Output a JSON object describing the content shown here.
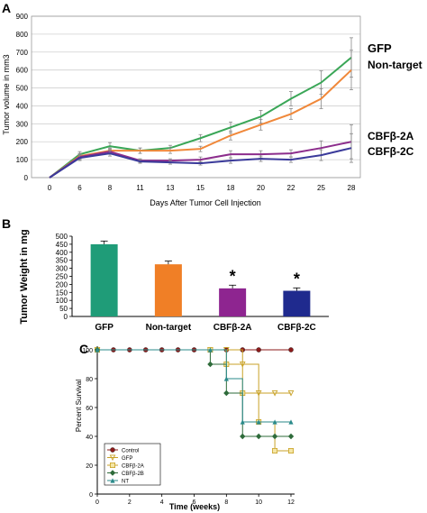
{
  "colors": {
    "gfp": "#3aa657",
    "nontarget": "#f0883a",
    "cbfb2a": "#8c2d8c",
    "cbfb2c": "#3a3a9a",
    "bar_gfp": "#1f9c78",
    "bar_nontarget": "#f07f26",
    "bar_2a": "#8e2590",
    "bar_2c": "#1f2a8e",
    "surv_control": "#8b1a1a",
    "surv_gfp": "#c9a227",
    "surv_2a": "#c9a227",
    "surv_2b": "#2e6b3a",
    "surv_nt": "#2a8a8a"
  },
  "chart_data": [
    {
      "panel": "A",
      "type": "line",
      "xlabel": "Days After Tumor Cell Injection",
      "ylabel": "Tumor volume in mm3",
      "categories": [
        "0",
        "6",
        "8",
        "11",
        "13",
        "15",
        "18",
        "20",
        "22",
        "25",
        "28"
      ],
      "ylim": [
        0,
        900
      ],
      "yticks": [
        0,
        100,
        200,
        300,
        400,
        500,
        600,
        700,
        800,
        900
      ],
      "series": [
        {
          "name": "GFP",
          "color_key": "gfp",
          "values": [
            0,
            130,
            175,
            150,
            165,
            220,
            280,
            340,
            440,
            530,
            670
          ],
          "err": [
            0,
            15,
            20,
            15,
            15,
            20,
            30,
            35,
            40,
            65,
            110
          ]
        },
        {
          "name": "Non-target",
          "color_key": "nontarget",
          "values": [
            0,
            120,
            150,
            150,
            150,
            160,
            235,
            295,
            355,
            440,
            600
          ],
          "err": [
            0,
            15,
            15,
            15,
            15,
            15,
            25,
            30,
            30,
            55,
            110
          ]
        },
        {
          "name": "CBFβ-2A",
          "color_key": "cbfb2a",
          "values": [
            0,
            115,
            145,
            95,
            95,
            100,
            130,
            130,
            135,
            165,
            200
          ],
          "err": [
            0,
            15,
            15,
            10,
            10,
            15,
            20,
            20,
            20,
            40,
            95
          ]
        },
        {
          "name": "CBFβ-2C",
          "color_key": "cbfb2c",
          "values": [
            0,
            110,
            135,
            90,
            85,
            80,
            95,
            105,
            100,
            125,
            165
          ],
          "err": [
            0,
            15,
            15,
            10,
            10,
            10,
            15,
            15,
            15,
            30,
            80
          ]
        }
      ],
      "legend_placement": "right"
    },
    {
      "panel": "B",
      "type": "bar",
      "ylabel": "Tumor Weight in mg",
      "categories": [
        "GFP",
        "Non-target",
        "CBFβ-2A",
        "CBFβ-2C"
      ],
      "values": [
        450,
        325,
        175,
        160
      ],
      "err": [
        20,
        20,
        20,
        18
      ],
      "ylim": [
        0,
        500
      ],
      "yticks": [
        0,
        50,
        100,
        150,
        200,
        250,
        300,
        350,
        400,
        450,
        500
      ],
      "annotations": [
        "",
        "",
        "*",
        "*"
      ]
    },
    {
      "panel": "C",
      "type": "line",
      "xlabel": "Time (weeks)",
      "ylabel": "Percent Survival",
      "xlim": [
        0,
        12
      ],
      "ylim": [
        0,
        100
      ],
      "xticks": [
        0,
        2,
        4,
        6,
        8,
        10,
        12
      ],
      "yticks": [
        0,
        20,
        40,
        60,
        80,
        100
      ],
      "step": true,
      "series": [
        {
          "name": "Control",
          "color_key": "surv_control",
          "marker": "circle",
          "x": [
            0,
            1,
            2,
            3,
            4,
            5,
            6,
            7,
            8,
            9,
            10,
            12
          ],
          "y": [
            100,
            100,
            100,
            100,
            100,
            100,
            100,
            100,
            100,
            100,
            100,
            100
          ]
        },
        {
          "name": "GFP",
          "color_key": "surv_gfp",
          "marker": "triangle-down",
          "x": [
            0,
            7,
            8,
            9,
            10,
            11,
            12
          ],
          "y": [
            100,
            100,
            100,
            90,
            70,
            70,
            70
          ]
        },
        {
          "name": "CBFβ-2A",
          "color_key": "surv_2a",
          "marker": "square",
          "x": [
            0,
            7,
            8,
            9,
            10,
            11,
            12
          ],
          "y": [
            100,
            100,
            90,
            70,
            50,
            30,
            30
          ]
        },
        {
          "name": "CBFβ-2B",
          "color_key": "surv_2b",
          "marker": "diamond",
          "x": [
            0,
            7,
            8,
            9,
            10,
            11,
            12
          ],
          "y": [
            100,
            90,
            70,
            40,
            40,
            40,
            40
          ]
        },
        {
          "name": "NT",
          "color_key": "surv_nt",
          "marker": "triangle-up",
          "x": [
            0,
            7,
            8,
            9,
            10,
            11,
            12
          ],
          "y": [
            100,
            100,
            80,
            50,
            50,
            50,
            50
          ]
        }
      ],
      "legend_placement": "bottom-left"
    }
  ],
  "panel_labels": [
    "A",
    "B",
    "C"
  ]
}
